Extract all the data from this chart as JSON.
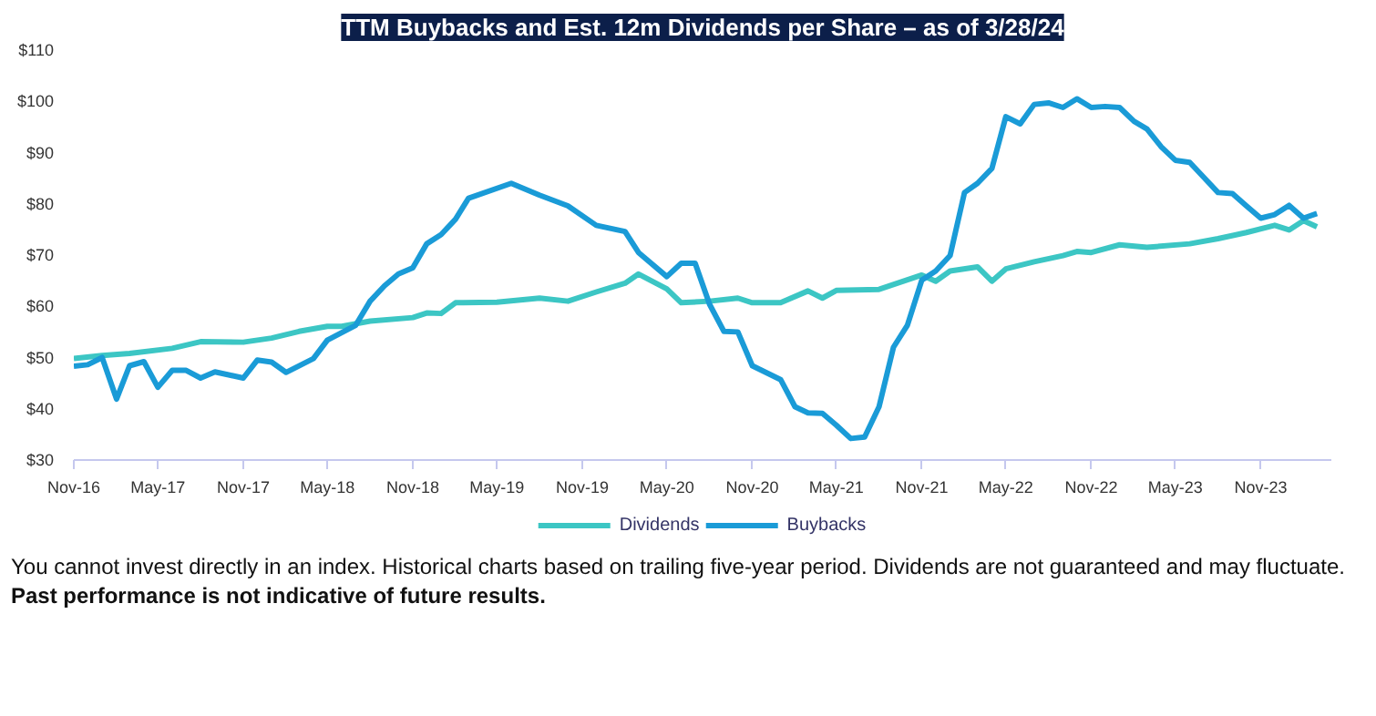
{
  "chart_data": {
    "type": "line",
    "title": "TTM Buybacks and Est. 12m Dividends per Share – as of 3/28/24",
    "xlim": [
      "2016-11",
      "2024-04"
    ],
    "xticks": [
      {
        "value": "2016-11",
        "label": "Nov-16"
      },
      {
        "value": "2017-05",
        "label": "May-17"
      },
      {
        "value": "2017-11",
        "label": "Nov-17"
      },
      {
        "value": "2018-05",
        "label": "May-18"
      },
      {
        "value": "2018-11",
        "label": "Nov-18"
      },
      {
        "value": "2019-05",
        "label": "May-19"
      },
      {
        "value": "2019-11",
        "label": "Nov-19"
      },
      {
        "value": "2020-05",
        "label": "May-20"
      },
      {
        "value": "2020-11",
        "label": "Nov-20"
      },
      {
        "value": "2021-05",
        "label": "May-21"
      },
      {
        "value": "2021-11",
        "label": "Nov-21"
      },
      {
        "value": "2022-05",
        "label": "May-22"
      },
      {
        "value": "2022-11",
        "label": "Nov-22"
      },
      {
        "value": "2023-05",
        "label": "May-23"
      },
      {
        "value": "2023-11",
        "label": "Nov-23"
      }
    ],
    "ylim": [
      30,
      110
    ],
    "yticks": [
      {
        "value": 30,
        "label": "$30"
      },
      {
        "value": 40,
        "label": "$40"
      },
      {
        "value": 50,
        "label": "$50"
      },
      {
        "value": 60,
        "label": "$60"
      },
      {
        "value": 70,
        "label": "$70"
      },
      {
        "value": 80,
        "label": "$80"
      },
      {
        "value": 90,
        "label": "$90"
      },
      {
        "value": 100,
        "label": "$100"
      },
      {
        "value": 110,
        "label": "$110"
      }
    ],
    "grid": false,
    "legend": "bottom",
    "marker": "none",
    "line_style": "solid",
    "series": [
      {
        "name": "Dividends",
        "color": "#3cc6c4",
        "x": [
          "2016-11",
          "2017-01",
          "2017-03",
          "2017-06",
          "2017-08",
          "2017-11",
          "2018-01",
          "2018-03",
          "2018-05",
          "2018-06",
          "2018-08",
          "2018-11",
          "2018-12",
          "2019-01",
          "2019-02",
          "2019-05",
          "2019-08",
          "2019-10",
          "2019-12",
          "2020-02",
          "2020-03",
          "2020-05",
          "2020-06",
          "2020-08",
          "2020-10",
          "2020-11",
          "2021-01",
          "2021-03",
          "2021-04",
          "2021-05",
          "2021-08",
          "2021-11",
          "2021-12",
          "2022-01",
          "2022-03",
          "2022-04",
          "2022-05",
          "2022-07",
          "2022-09",
          "2022-10",
          "2022-11",
          "2023-01",
          "2023-03",
          "2023-06",
          "2023-08",
          "2023-10",
          "2023-12",
          "2024-01",
          "2024-02",
          "2024-03"
        ],
        "values": [
          49.8,
          50.4,
          50.8,
          51.8,
          53.1,
          53.0,
          53.8,
          55.1,
          56.1,
          56.1,
          57.1,
          57.8,
          58.7,
          58.6,
          60.7,
          60.8,
          61.6,
          61.0,
          62.8,
          64.5,
          66.3,
          63.4,
          60.7,
          61.0,
          61.6,
          60.7,
          60.7,
          63.0,
          61.6,
          63.1,
          63.3,
          66.1,
          64.9,
          66.9,
          67.7,
          64.9,
          67.3,
          68.7,
          69.9,
          70.7,
          70.5,
          72.0,
          71.5,
          72.2,
          73.2,
          74.4,
          75.8,
          74.9,
          76.7,
          75.5
        ]
      },
      {
        "name": "Buybacks",
        "color": "#1a9bd7",
        "x": [
          "2016-11",
          "2016-12",
          "2017-01",
          "2017-02",
          "2017-03",
          "2017-04",
          "2017-05",
          "2017-06",
          "2017-07",
          "2017-08",
          "2017-09",
          "2017-11",
          "2017-12",
          "2018-01",
          "2018-02",
          "2018-04",
          "2018-05",
          "2018-07",
          "2018-08",
          "2018-09",
          "2018-10",
          "2018-11",
          "2018-12",
          "2019-01",
          "2019-02",
          "2019-03",
          "2019-06",
          "2019-08",
          "2019-10",
          "2019-12",
          "2020-02",
          "2020-03",
          "2020-05",
          "2020-06",
          "2020-07",
          "2020-08",
          "2020-09",
          "2020-10",
          "2020-11",
          "2021-01",
          "2021-02",
          "2021-03",
          "2021-04",
          "2021-05",
          "2021-06",
          "2021-07",
          "2021-08",
          "2021-09",
          "2021-10",
          "2021-11",
          "2021-12",
          "2022-01",
          "2022-02",
          "2022-03",
          "2022-04",
          "2022-05",
          "2022-06",
          "2022-07",
          "2022-08",
          "2022-09",
          "2022-10",
          "2022-11",
          "2022-12",
          "2023-01",
          "2023-02",
          "2023-03",
          "2023-04",
          "2023-05",
          "2023-06",
          "2023-07",
          "2023-08",
          "2023-09",
          "2023-10",
          "2023-11",
          "2023-12",
          "2024-01",
          "2024-02",
          "2024-03"
        ],
        "values": [
          48.3,
          48.6,
          50.0,
          41.9,
          48.4,
          49.2,
          44.2,
          47.5,
          47.5,
          46.0,
          47.2,
          46.0,
          49.5,
          49.1,
          47.1,
          49.8,
          53.4,
          56.3,
          61.0,
          64.0,
          66.3,
          67.5,
          72.2,
          74.0,
          77.0,
          81.1,
          84.0,
          81.7,
          79.6,
          75.8,
          74.6,
          70.5,
          65.8,
          68.4,
          68.4,
          60.4,
          55.1,
          55.0,
          48.4,
          45.7,
          40.4,
          39.2,
          39.1,
          36.8,
          34.2,
          34.5,
          40.4,
          52.0,
          56.3,
          65.1,
          66.9,
          69.9,
          82.2,
          84.0,
          86.9,
          97.0,
          95.6,
          99.4,
          99.7,
          98.8,
          100.5,
          98.8,
          99.0,
          98.8,
          96.1,
          94.6,
          91.1,
          88.5,
          88.1,
          85.2,
          82.2,
          82.0,
          79.6,
          77.2,
          77.9,
          79.7,
          77.2,
          78.1
        ]
      }
    ],
    "annotations": [
      "You cannot invest directly in an index. Historical charts based on trailing five-year period. Dividends are not guaranteed and may fluctuate.",
      "Past performance is not indicative of future results."
    ]
  }
}
